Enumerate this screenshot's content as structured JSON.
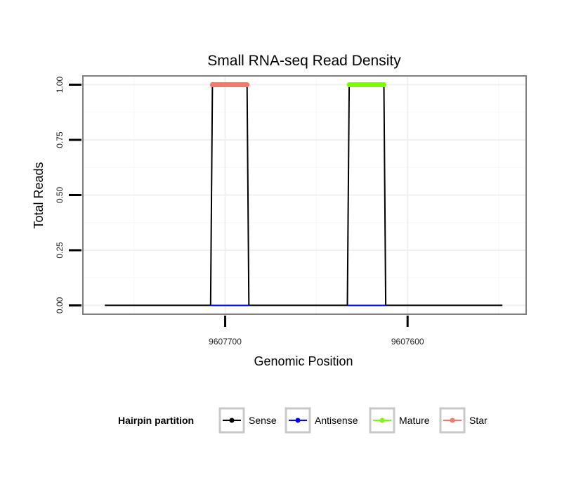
{
  "chart_data": {
    "type": "line",
    "title": "Small RNA-seq Read Density",
    "xlabel": "Genomic Position",
    "ylabel": "Total Reads",
    "x_reversed": true,
    "xlim": [
      9607535,
      9607778
    ],
    "ylim": [
      -0.04,
      1.04
    ],
    "x_ticks": [
      9607700,
      9607600
    ],
    "x_tick_labels": [
      "9607700",
      "9607600"
    ],
    "y_ticks": [
      0.0,
      0.25,
      0.5,
      0.75,
      1.0
    ],
    "y_tick_labels": [
      "0.00",
      "0.25",
      "0.50",
      "0.75",
      "1.00"
    ],
    "series": [
      {
        "name": "Sense",
        "color": "#000000",
        "x": [
          9607766,
          9607708,
          9607707,
          9607688,
          9607687,
          9607633,
          9607632,
          9607613,
          9607612,
          9607548
        ],
        "y": [
          0,
          0,
          1,
          1,
          0,
          0,
          1,
          1,
          0,
          0
        ]
      },
      {
        "name": "Antisense",
        "color": "#0000ff",
        "x": [
          9607708,
          9607687,
          9607633,
          9607612
        ],
        "y": [
          0,
          0,
          0,
          0
        ],
        "segments": [
          [
            0,
            1
          ],
          [
            2,
            3
          ]
        ]
      },
      {
        "name": "Mature",
        "color": "#7cfc00",
        "x": [
          9607632,
          9607613
        ],
        "y": [
          1,
          1
        ]
      },
      {
        "name": "Star",
        "color": "#f8766d",
        "x": [
          9607707,
          9607688
        ],
        "y": [
          1,
          1
        ]
      }
    ],
    "legend": {
      "title": "Hairpin partition",
      "position": "bottom",
      "entries": [
        "Sense",
        "Antisense",
        "Mature",
        "Star"
      ]
    }
  }
}
